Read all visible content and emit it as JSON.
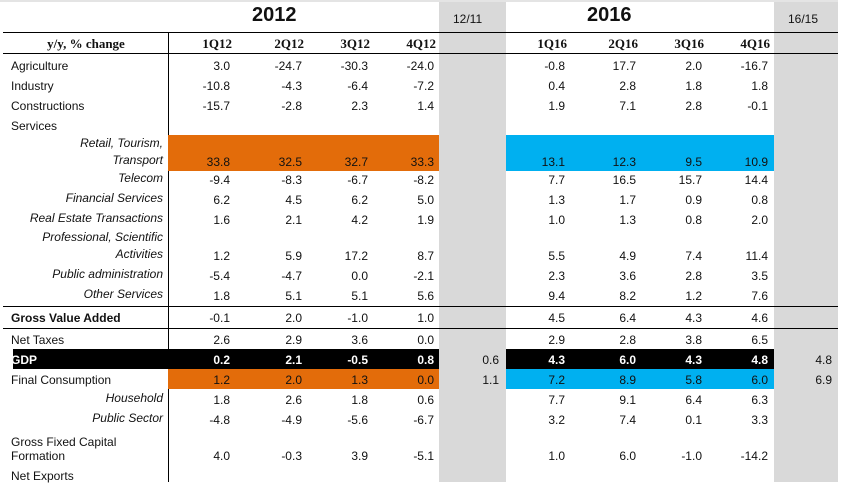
{
  "title_2012": "2012",
  "title_2016": "2016",
  "ratio_a": "12/11",
  "ratio_b": "16/15",
  "header": {
    "label": "y/y, % change",
    "q2012": [
      "1Q12",
      "2Q12",
      "3Q12",
      "4Q12"
    ],
    "q2016": [
      "1Q16",
      "2Q16",
      "3Q16",
      "4Q16"
    ]
  },
  "colors": {
    "orange": "#e36c0a",
    "blue": "#00b0f0",
    "gray": "#d9d9d9"
  },
  "rows": [
    {
      "label": "Agriculture",
      "v2012": [
        "3.0",
        "-24.7",
        "-30.3",
        "-24.0"
      ],
      "v2016": [
        "-0.8",
        "17.7",
        "2.0",
        "-16.7"
      ]
    },
    {
      "label": "Industry",
      "v2012": [
        "-10.8",
        "-4.3",
        "-6.4",
        "-7.2"
      ],
      "v2016": [
        "0.4",
        "2.8",
        "1.8",
        "1.8"
      ]
    },
    {
      "label": "Constructions",
      "v2012": [
        "-15.7",
        "-2.8",
        "2.3",
        "1.4"
      ],
      "v2016": [
        "1.9",
        "7.1",
        "2.8",
        "-0.1"
      ]
    },
    {
      "label": "Services",
      "v2012": [
        "",
        "",
        "",
        ""
      ],
      "v2016": [
        "",
        "",
        "",
        ""
      ]
    },
    {
      "label": "Retail, Tourism,\nTransport",
      "style": "italic",
      "highlight": true,
      "v2012": [
        "33.8",
        "32.5",
        "32.7",
        "33.3"
      ],
      "v2016": [
        "13.1",
        "12.3",
        "9.5",
        "10.9"
      ]
    },
    {
      "label": "Telecom",
      "style": "italic",
      "v2012": [
        "-9.4",
        "-8.3",
        "-6.7",
        "-8.2"
      ],
      "v2016": [
        "7.7",
        "16.5",
        "15.7",
        "14.4"
      ]
    },
    {
      "label": "Financial Services",
      "style": "italic",
      "v2012": [
        "6.2",
        "4.5",
        "6.2",
        "5.0"
      ],
      "v2016": [
        "1.3",
        "1.7",
        "0.9",
        "0.8"
      ]
    },
    {
      "label": "Real Estate Transactions",
      "style": "italic",
      "v2012": [
        "1.6",
        "2.1",
        "4.2",
        "1.9"
      ],
      "v2016": [
        "1.0",
        "1.3",
        "0.8",
        "2.0"
      ]
    },
    {
      "label": "Professional, Scientific\nActivities",
      "style": "italic",
      "v2012": [
        "1.2",
        "5.9",
        "17.2",
        "8.7"
      ],
      "v2016": [
        "5.5",
        "4.9",
        "7.4",
        "11.4"
      ]
    },
    {
      "label": "Public administration",
      "style": "italic",
      "v2012": [
        "-5.4",
        "-4.7",
        "0.0",
        "-2.1"
      ],
      "v2016": [
        "2.3",
        "3.6",
        "2.8",
        "3.5"
      ]
    },
    {
      "label": "Other Services",
      "style": "italic",
      "v2012": [
        "1.8",
        "5.1",
        "5.1",
        "5.6"
      ],
      "v2016": [
        "9.4",
        "8.2",
        "1.2",
        "7.6"
      ]
    },
    {
      "label": "Gross Value Added",
      "style": "bold",
      "v2012": [
        "-0.1",
        "2.0",
        "-1.0",
        "1.0"
      ],
      "v2016": [
        "4.5",
        "6.4",
        "4.3",
        "4.6"
      ]
    },
    {
      "label": "Net Taxes",
      "v2012": [
        "2.6",
        "2.9",
        "3.6",
        "0.0"
      ],
      "v2016": [
        "2.9",
        "2.8",
        "3.8",
        "6.5"
      ]
    },
    {
      "label": "GDP",
      "style": "gdp",
      "v2012": [
        "0.2",
        "2.1",
        "-0.5",
        "0.8"
      ],
      "v2016": [
        "4.3",
        "6.0",
        "4.3",
        "4.8"
      ],
      "ra": "0.6",
      "rb": "4.8"
    },
    {
      "label": "Final Consumption",
      "highlight": true,
      "v2012": [
        "1.2",
        "2.0",
        "1.3",
        "0.0"
      ],
      "v2016": [
        "7.2",
        "8.9",
        "5.8",
        "6.0"
      ],
      "ra": "1.1",
      "rb": "6.9"
    },
    {
      "label": "Household",
      "style": "italic",
      "v2012": [
        "1.8",
        "2.6",
        "1.8",
        "0.6"
      ],
      "v2016": [
        "7.7",
        "9.1",
        "6.4",
        "6.3"
      ]
    },
    {
      "label": "Public Sector",
      "style": "italic",
      "v2012": [
        "-4.8",
        "-4.9",
        "-5.6",
        "-6.7"
      ],
      "v2016": [
        "3.2",
        "7.4",
        "0.1",
        "3.3"
      ]
    },
    {
      "label": "Gross Fixed Capital\nFormation",
      "v2012": [
        "4.0",
        "-0.3",
        "3.9",
        "-5.1"
      ],
      "v2016": [
        "1.0",
        "6.0",
        "-1.0",
        "-14.2"
      ]
    },
    {
      "label": "Net Exports",
      "v2012": [
        "",
        "",
        "",
        ""
      ],
      "v2016": [
        "",
        "",
        "",
        ""
      ]
    }
  ]
}
